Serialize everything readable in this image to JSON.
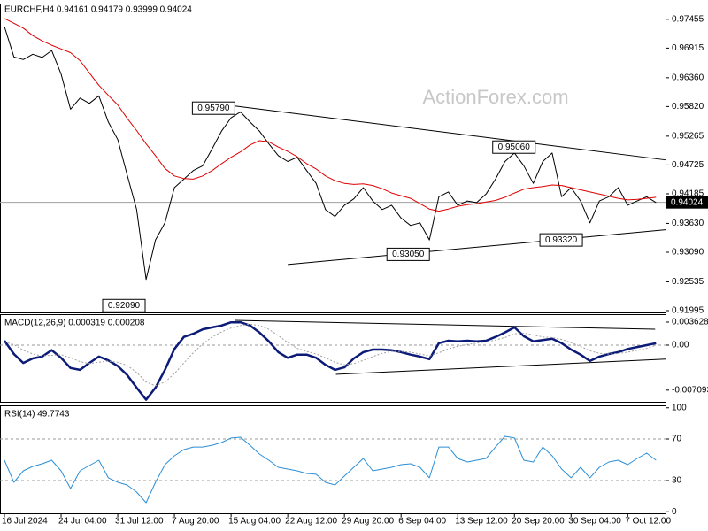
{
  "chart_data": [
    {
      "type": "line",
      "title": "EURCHF,H4  0.94161 0.94179 0.93999 0.94024",
      "watermark": "ActionForex.com",
      "categories": [
        "16 Jul 2024",
        null,
        null,
        null,
        null,
        null,
        "24 Jul 04:00",
        null,
        null,
        null,
        null,
        null,
        "31 Jul 12:00",
        null,
        null,
        null,
        null,
        null,
        "7 Aug 20:00",
        null,
        null,
        null,
        null,
        null,
        "15 Aug 04:00",
        null,
        null,
        null,
        null,
        null,
        "22 Aug 12:00",
        null,
        null,
        null,
        null,
        null,
        "29 Aug 20:00",
        null,
        null,
        null,
        null,
        null,
        "6 Sep 04:00",
        null,
        null,
        null,
        null,
        null,
        "13 Sep 12:00",
        null,
        null,
        null,
        null,
        null,
        "20 Sep 20:00",
        null,
        null,
        null,
        null,
        null,
        "30 Sep 04:00",
        null,
        null,
        null,
        null,
        null,
        "7 Oct 12:00",
        null,
        null,
        null
      ],
      "series": [
        {
          "color": "#000000",
          "width": 1,
          "values": [
            0.9732,
            0.9675,
            0.967,
            0.968,
            0.9674,
            0.9687,
            0.9643,
            0.9577,
            0.9598,
            0.9588,
            0.9602,
            0.9553,
            0.952,
            0.9454,
            0.9389,
            0.9258,
            0.9332,
            0.9364,
            0.943,
            0.9446,
            0.9462,
            0.9471,
            0.9503,
            0.9536,
            0.9561,
            0.9572,
            0.9553,
            0.9536,
            0.9512,
            0.949,
            0.9479,
            0.9487,
            0.9462,
            0.9438,
            0.9389,
            0.9376,
            0.9397,
            0.9409,
            0.943,
            0.9405,
            0.9389,
            0.9397,
            0.9373,
            0.9359,
            0.9364,
            0.9332,
            0.9413,
            0.9422,
            0.9397,
            0.9405,
            0.9402,
            0.9418,
            0.9446,
            0.9479,
            0.9495,
            0.9471,
            0.9438,
            0.9479,
            0.9495,
            0.9413,
            0.943,
            0.9405,
            0.9364,
            0.9405,
            0.9413,
            0.943,
            0.9397,
            0.9405,
            0.9413,
            0.9402
          ]
        },
        {
          "color": "#e00000",
          "width": 1,
          "values": [
            0.9747,
            0.9738,
            0.9729,
            0.9715,
            0.9705,
            0.9697,
            0.969,
            0.9683,
            0.9668,
            0.9645,
            0.9622,
            0.9603,
            0.9585,
            0.956,
            0.9537,
            0.9512,
            0.949,
            0.9466,
            0.9452,
            0.9447,
            0.9446,
            0.9452,
            0.9462,
            0.9475,
            0.9487,
            0.9497,
            0.951,
            0.9518,
            0.9516,
            0.9506,
            0.9498,
            0.9488,
            0.9475,
            0.9465,
            0.9452,
            0.9443,
            0.9438,
            0.9436,
            0.9437,
            0.9434,
            0.9428,
            0.942,
            0.9415,
            0.941,
            0.94,
            0.939,
            0.9386,
            0.939,
            0.9395,
            0.9398,
            0.94,
            0.9403,
            0.9406,
            0.9412,
            0.942,
            0.9427,
            0.943,
            0.9432,
            0.9435,
            0.9434,
            0.943,
            0.9426,
            0.9422,
            0.9418,
            0.9414,
            0.941,
            0.9407,
            0.9408,
            0.941,
            0.9412
          ]
        }
      ],
      "ylim": [
        0.91962,
        0.97734
      ],
      "yticks": [
        0.97455,
        0.96915,
        {
          "value": 0.9636,
          "label": "0.96360"
        },
        {
          "value": 0.9582,
          "label": "0.95820"
        },
        0.95265,
        0.94725,
        0.94185,
        {
          "value": 0.9363,
          "label": "0.93630"
        },
        {
          "value": 0.9309,
          "label": "0.93090"
        },
        0.92535,
        0.91995
      ],
      "last_price": 0.94024,
      "annotations": [
        {
          "label": "0.95790",
          "x": 24.4,
          "y": 0.9579
        },
        {
          "label": "0.95060",
          "x": 56.2,
          "y": 0.9506
        },
        {
          "label": "0.93050",
          "x": 45,
          "y": 0.9305
        },
        {
          "label": "0.93320",
          "x": 61.2,
          "y": 0.9332
        },
        {
          "label": "0.92090",
          "x": 14.9,
          "y": 0.9209
        }
      ],
      "trendlines": [
        {
          "from": [
            24.4,
            0.9583
          ],
          "to": [
            70,
            0.9482
          ]
        },
        {
          "from": [
            30,
            0.9286
          ],
          "to": [
            70,
            0.9351
          ]
        }
      ]
    },
    {
      "type": "line",
      "title": "MACD(12,26,9) 0.000319 0.000208",
      "series": [
        {
          "color": "#0c1a78",
          "width": 2.5,
          "values": [
            0.0007,
            -0.0014,
            -0.0028,
            -0.0021,
            -0.0018,
            -0.0008,
            -0.002,
            -0.0036,
            -0.0039,
            -0.0028,
            -0.0018,
            -0.0024,
            -0.0033,
            -0.0047,
            -0.0067,
            -0.0086,
            -0.0067,
            -0.0039,
            -0.0006,
            0.0013,
            0.0018,
            0.0025,
            0.0028,
            0.0031,
            0.0036,
            0.0036,
            0.0031,
            0.002,
            0.0006,
            -0.0011,
            -0.002,
            -0.0015,
            -0.0015,
            -0.002,
            -0.0031,
            -0.0039,
            -0.0035,
            -0.0021,
            -0.0011,
            -0.0007,
            -0.0007,
            -0.0008,
            -0.0011,
            -0.0015,
            -0.0018,
            -0.0022,
            0.0003,
            0.0007,
            0.0006,
            0.0007,
            0.0006,
            0.0007,
            0.0013,
            0.002,
            0.0028,
            0.0014,
            0.0006,
            0.0008,
            0.001,
            0.0003,
            -0.0007,
            -0.0015,
            -0.0025,
            -0.0018,
            -0.0014,
            -0.0011,
            -0.0006,
            -0.0003,
            0,
            0.0003
          ]
        },
        {
          "color": "#a0a0a0",
          "width": 1,
          "style": "dotted",
          "values": [
            0.0005,
            0.0001,
            -0.0008,
            -0.0014,
            -0.0017,
            -0.0016,
            -0.0015,
            -0.002,
            -0.0026,
            -0.0029,
            -0.0027,
            -0.0025,
            -0.0027,
            -0.0032,
            -0.0043,
            -0.0058,
            -0.0064,
            -0.0058,
            -0.0045,
            -0.0028,
            -0.0012,
            0.0002,
            0.0013,
            0.0021,
            0.0027,
            0.0031,
            0.0033,
            0.0031,
            0.0025,
            0.0015,
            0.0004,
            -0.0005,
            -0.001,
            -0.0014,
            -0.002,
            -0.0027,
            -0.0031,
            -0.0029,
            -0.0024,
            -0.0018,
            -0.0013,
            -0.001,
            -0.001,
            -0.0011,
            -0.0014,
            -0.0017,
            -0.0012,
            -0.0006,
            -0.0002,
            0.0001,
            0.0003,
            0.0005,
            0.0008,
            0.0012,
            0.0018,
            0.0019,
            0.0016,
            0.0013,
            0.0012,
            0.0009,
            0.0004,
            -0.0002,
            -0.0009,
            -0.0013,
            -0.0014,
            -0.0013,
            -0.0011,
            -0.0008,
            -0.0005,
            0
          ]
        }
      ],
      "ylim": [
        -0.00893,
        0.00474
      ],
      "yticks": [
        0.003628,
        {
          "value": 0,
          "label": "0.00"
        },
        -0.007093
      ],
      "levels": [
        0
      ],
      "trendlines": [
        {
          "from": [
            24.4,
            0.0039
          ],
          "to": [
            68.9,
            0.0025
          ]
        },
        {
          "from": [
            35.1,
            -0.0046
          ],
          "to": [
            70,
            -0.0022
          ]
        }
      ]
    },
    {
      "type": "line",
      "title": "RSI(14) 49.7743",
      "series": [
        {
          "color": "#2a8fd6",
          "width": 1,
          "values": [
            49.6,
            28.3,
            39.4,
            43.6,
            46.2,
            49.6,
            39.4,
            22.3,
            39.4,
            44.5,
            49.6,
            32.6,
            28.3,
            25.7,
            18.9,
            8.7,
            28.3,
            45.3,
            53.8,
            59.8,
            62.3,
            62.3,
            64,
            66.6,
            70.9,
            71.7,
            64,
            55.5,
            49.6,
            42.8,
            41.1,
            39.4,
            36.8,
            36,
            28.3,
            25.7,
            34.3,
            42.8,
            51.3,
            39.4,
            41.1,
            42.8,
            45.3,
            46.2,
            42.8,
            32.6,
            62.3,
            62.3,
            51.3,
            47.9,
            49.6,
            51.3,
            62.3,
            72.6,
            70.9,
            49.6,
            47.9,
            62.3,
            53.8,
            41.1,
            32.6,
            42.8,
            32.6,
            42.8,
            47.9,
            49.6,
            45.3,
            51.3,
            56.4,
            49.6
          ]
        }
      ],
      "ylim": [
        -1.5,
        101.5
      ],
      "yticks": [
        0,
        30,
        70,
        100
      ],
      "levels": [
        30,
        70
      ]
    }
  ]
}
